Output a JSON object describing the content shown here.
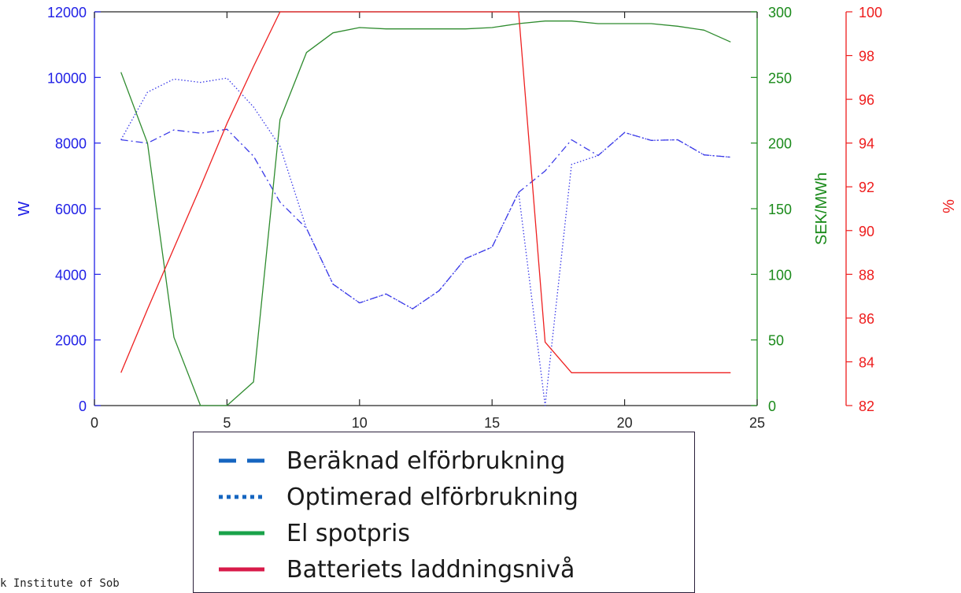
{
  "chart_data": {
    "type": "line",
    "x": [
      1,
      2,
      3,
      4,
      5,
      6,
      7,
      8,
      9,
      10,
      11,
      12,
      13,
      14,
      15,
      16,
      17,
      18,
      19,
      20,
      21,
      22,
      23,
      24
    ],
    "xlim": [
      0,
      25
    ],
    "xticks": [
      "0",
      "5",
      "10",
      "15",
      "20",
      "25"
    ],
    "axes": {
      "left": {
        "label": "W",
        "ylim": [
          0,
          12000
        ],
        "ticks": [
          "0",
          "2000",
          "4000",
          "6000",
          "8000",
          "10000",
          "12000"
        ],
        "color": "#1f1fe6"
      },
      "right1": {
        "label": "SEK/MWh",
        "ylim": [
          0,
          300
        ],
        "ticks": [
          "0",
          "50",
          "100",
          "150",
          "200",
          "250",
          "300"
        ],
        "color": "#1a8a1a"
      },
      "right2": {
        "label": "%",
        "ylim": [
          82,
          100
        ],
        "ticks": [
          "82",
          "84",
          "86",
          "88",
          "90",
          "92",
          "94",
          "96",
          "98",
          "100"
        ],
        "color": "#ee1c1c"
      }
    },
    "series": [
      {
        "name": "Beräknad elförbrukning",
        "axis": "left",
        "style": "dashdot",
        "color": "#3a3ae8",
        "values": [
          8100,
          8000,
          8400,
          8300,
          8420,
          7600,
          6200,
          5400,
          3700,
          3130,
          3400,
          2950,
          3500,
          4480,
          4830,
          6500,
          7150,
          8100,
          7620,
          8320,
          8080,
          8100,
          7640,
          7570
        ]
      },
      {
        "name": "Optimerad elförbrukning",
        "axis": "left",
        "style": "dotted",
        "color": "#3a3ae8",
        "values": [
          8100,
          9550,
          9950,
          9850,
          9980,
          9100,
          7900,
          5400,
          3700,
          3130,
          3400,
          2950,
          3500,
          4480,
          4830,
          6500,
          0,
          7350,
          7620,
          8320,
          8080,
          8100,
          7640,
          7570
        ]
      },
      {
        "name": "El spotpris",
        "axis": "right1",
        "style": "solid",
        "color": "#2e8b2e",
        "values": [
          254,
          200,
          52,
          0,
          0,
          18,
          218,
          269,
          284,
          288,
          287,
          287,
          287,
          287,
          288,
          291,
          293,
          293,
          291,
          291,
          291,
          289,
          286,
          277
        ]
      },
      {
        "name": "Batteriets laddningsnivå",
        "axis": "right2",
        "style": "solid",
        "color": "#ee2020",
        "values": [
          83.5,
          86.4,
          89.2,
          92,
          94.9,
          97.5,
          100,
          100,
          100,
          100,
          100,
          100,
          100,
          100,
          100,
          100,
          84.9,
          83.5,
          83.5,
          83.5,
          83.5,
          83.5,
          83.5,
          83.5
        ]
      }
    ]
  },
  "legend": {
    "entries": [
      {
        "label": "Beräknad elförbrukning",
        "color": "#1565c0",
        "style": "dashed"
      },
      {
        "label": "Optimerad elförbrukning",
        "color": "#1565c0",
        "style": "dotted"
      },
      {
        "label": "El spotpris",
        "color": "#1aa34a",
        "style": "solid"
      },
      {
        "label": "Batteriets laddningsnivå",
        "color": "#d81b4a",
        "style": "solid"
      }
    ]
  },
  "footnote": "k Institute of Sob"
}
